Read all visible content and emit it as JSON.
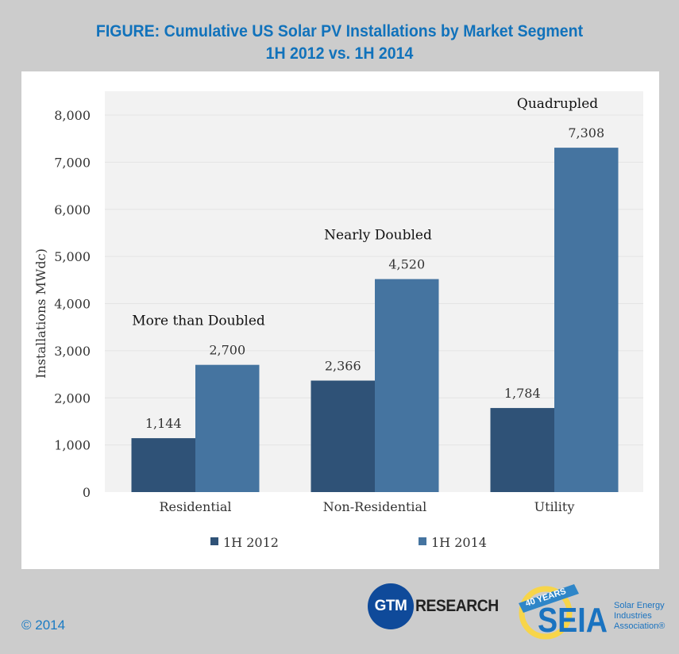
{
  "header": {
    "title_line1": "FIGURE: Cumulative US Solar PV Installations by Market Segment",
    "title_line2": "1H 2012 vs. 1H 2014"
  },
  "colors": {
    "title": "#1172bb",
    "series_2012": "#2f5277",
    "series_2014": "#4574a0",
    "plot_bg": "#f2f2f2",
    "page_bg": "#cccccc"
  },
  "chart_data": {
    "type": "bar",
    "title": "Cumulative US Solar PV Installations by Market Segment 1H 2012 vs. 1H 2014",
    "xlabel": "",
    "ylabel": "Installations MWdc)",
    "ylim": [
      0,
      8000
    ],
    "yticks": [
      0,
      1000,
      2000,
      3000,
      4000,
      5000,
      6000,
      7000,
      8000
    ],
    "ytick_labels": [
      "0",
      "1,000",
      "2,000",
      "3,000",
      "4,000",
      "5,000",
      "6,000",
      "7,000",
      "8,000"
    ],
    "grid": true,
    "categories": [
      "Residential",
      "Non-Residential",
      "Utility"
    ],
    "series": [
      {
        "name": "1H 2012",
        "values": [
          1144,
          2366,
          1784
        ],
        "labels": [
          "1,144",
          "2,366",
          "1,784"
        ]
      },
      {
        "name": "1H 2014",
        "values": [
          2700,
          4520,
          7308
        ],
        "labels": [
          "2,700",
          "4,520",
          "7,308"
        ]
      }
    ],
    "annotations": [
      "More than Doubled",
      "Nearly Doubled",
      "Quadrupled"
    ],
    "legend_position": "bottom"
  },
  "footer": {
    "copyright": "© 2014",
    "gtm_logo": {
      "seal": "GTM",
      "word": "RESEARCH"
    },
    "seia_logo": {
      "ribbon": "40 YEARS",
      "mark": "SEIA",
      "line1": "Solar Energy",
      "line2": "Industries",
      "line3": "Association®"
    }
  }
}
